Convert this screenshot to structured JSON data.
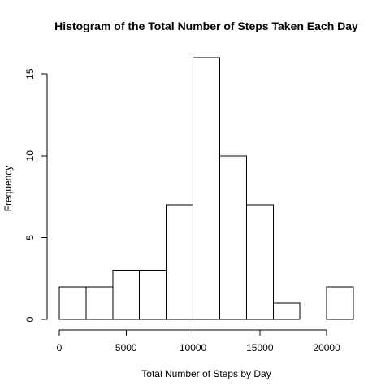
{
  "chart_data": {
    "type": "bar",
    "title": "Histogram of the Total Number of Steps Taken Each Day",
    "xlabel": "Total Number of Steps by Day",
    "ylabel": "Frequency",
    "bins": [
      {
        "start": 0,
        "end": 2000,
        "count": 2
      },
      {
        "start": 2000,
        "end": 4000,
        "count": 2
      },
      {
        "start": 4000,
        "end": 6000,
        "count": 3
      },
      {
        "start": 6000,
        "end": 8000,
        "count": 3
      },
      {
        "start": 8000,
        "end": 10000,
        "count": 7
      },
      {
        "start": 10000,
        "end": 12000,
        "count": 16
      },
      {
        "start": 12000,
        "end": 14000,
        "count": 10
      },
      {
        "start": 14000,
        "end": 16000,
        "count": 7
      },
      {
        "start": 16000,
        "end": 18000,
        "count": 1
      },
      {
        "start": 18000,
        "end": 20000,
        "count": 0
      },
      {
        "start": 20000,
        "end": 22000,
        "count": 2
      }
    ],
    "xlim": [
      0,
      22000
    ],
    "ylim": [
      0,
      16
    ],
    "x_ticks": [
      0,
      5000,
      10000,
      15000,
      20000
    ],
    "x_tick_labels": [
      "0",
      "5000",
      "10000",
      "15000",
      "20000"
    ],
    "y_ticks": [
      0,
      5,
      10,
      15
    ],
    "y_tick_labels": [
      "0",
      "5",
      "10",
      "15"
    ],
    "grid": false,
    "bar_fill": "#ffffff",
    "bar_stroke": "#000000"
  }
}
